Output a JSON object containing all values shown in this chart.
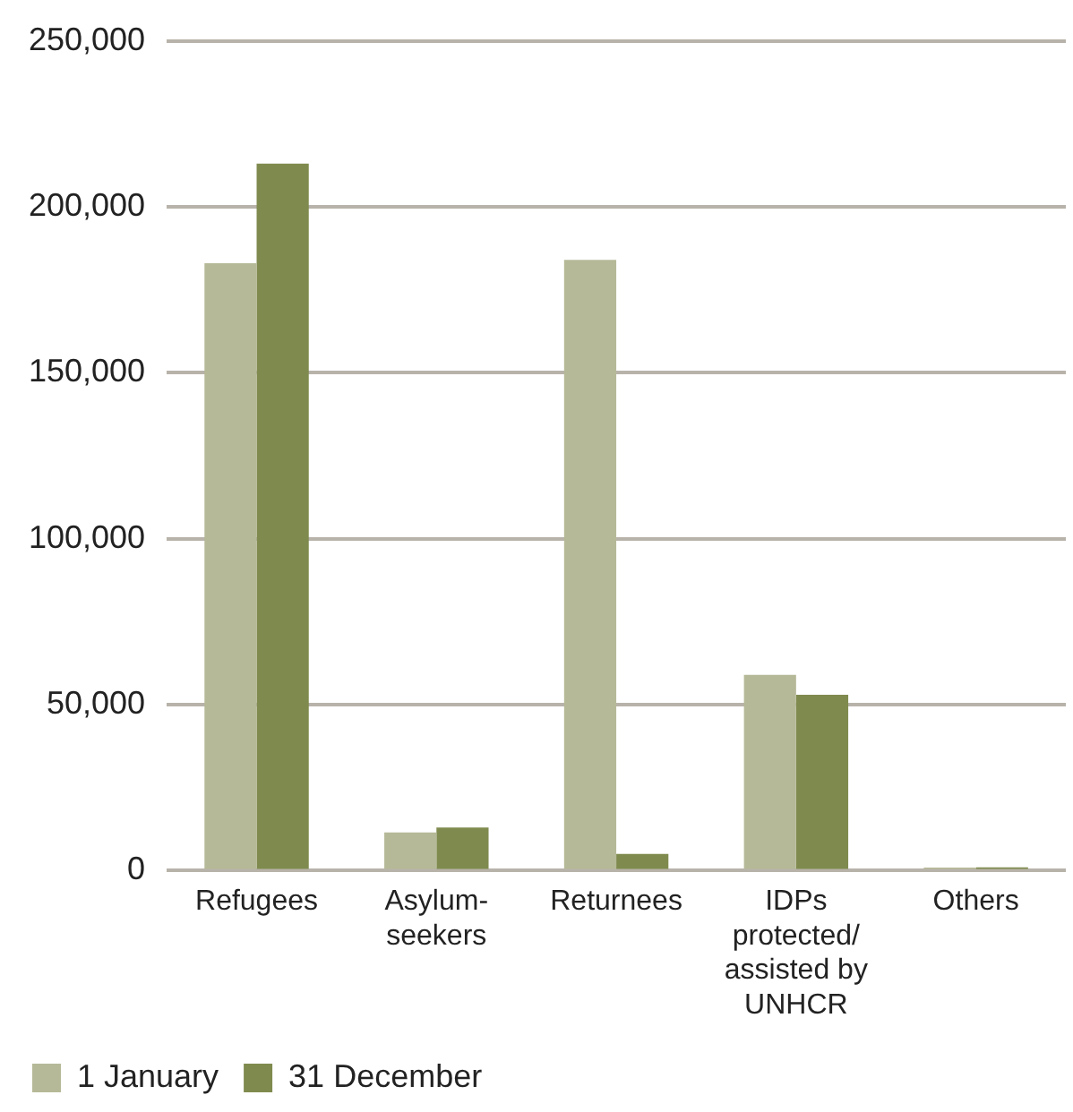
{
  "chart_data": {
    "type": "bar",
    "categories": [
      "Refugees",
      "Asylum-seekers",
      "Returnees",
      "IDPs protected/assisted by UNHCR",
      "Others"
    ],
    "series": [
      {
        "name": "1 January",
        "color": "#b6b997",
        "values": [
          183000,
          11500,
          184000,
          59000,
          900
        ]
      },
      {
        "name": "31 December",
        "color": "#7f8b4e",
        "values": [
          213000,
          13000,
          5000,
          53000,
          1000
        ]
      }
    ],
    "ylim": [
      0,
      250000
    ],
    "yticks": [
      {
        "value": 0,
        "label": "0"
      },
      {
        "value": 50000,
        "label": "50,000"
      },
      {
        "value": 100000,
        "label": "100,000"
      },
      {
        "value": 150000,
        "label": "150,000"
      },
      {
        "value": 200000,
        "label": "200,000"
      },
      {
        "value": 250000,
        "label": "250,000"
      }
    ],
    "grid": "y",
    "legend": "bottom left"
  }
}
